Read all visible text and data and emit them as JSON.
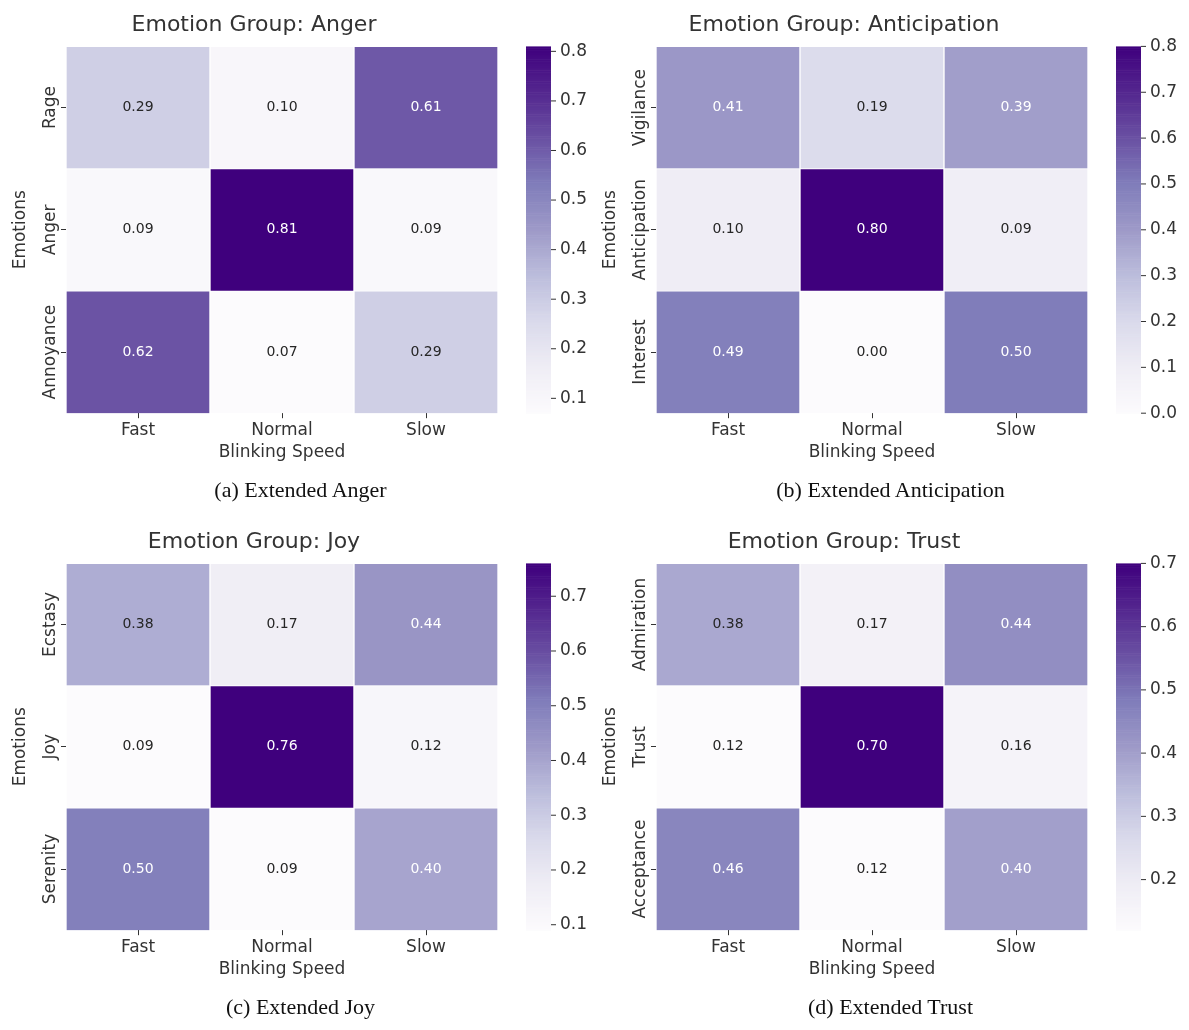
{
  "chart_data": [
    {
      "type": "heatmap",
      "title": "Emotion Group: Anger",
      "xlabel": "Blinking Speed",
      "ylabel": "Emotions",
      "categories": [
        "Fast",
        "Normal",
        "Slow"
      ],
      "y_categories": [
        "Rage",
        "Anger",
        "Annoyance"
      ],
      "cells": [
        [
          0.29,
          0.1,
          0.61
        ],
        [
          0.09,
          0.81,
          0.09
        ],
        [
          0.62,
          0.07,
          0.29
        ]
      ],
      "cell_labels": [
        [
          "0.29",
          "0.10",
          "0.61"
        ],
        [
          "0.09",
          "0.81",
          "0.09"
        ],
        [
          "0.62",
          "0.07",
          "0.29"
        ]
      ],
      "clim": [
        0.07,
        0.81
      ],
      "cticks": [
        0.1,
        0.2,
        0.3,
        0.4,
        0.5,
        0.6,
        0.7,
        0.8
      ],
      "annotations": [
        "(a) Extended Anger"
      ]
    },
    {
      "type": "heatmap",
      "title": "Emotion Group: Anticipation",
      "xlabel": "Blinking Speed",
      "ylabel": "Emotions",
      "categories": [
        "Fast",
        "Normal",
        "Slow"
      ],
      "y_categories": [
        "Vigilance",
        "Anticipation",
        "Interest"
      ],
      "cells": [
        [
          0.41,
          0.19,
          0.39
        ],
        [
          0.1,
          0.8,
          0.09
        ],
        [
          0.49,
          0.0,
          0.5
        ]
      ],
      "cell_labels": [
        [
          "0.41",
          "0.19",
          "0.39"
        ],
        [
          "0.10",
          "0.80",
          "0.09"
        ],
        [
          "0.49",
          "0.00",
          "0.50"
        ]
      ],
      "clim": [
        0.0,
        0.8
      ],
      "cticks": [
        {
          "value": 0,
          "label": "0.0"
        },
        0.1,
        0.2,
        0.3,
        0.4,
        0.5,
        0.6,
        0.7,
        0.8
      ],
      "annotations": [
        "(b) Extended Anticipation"
      ]
    },
    {
      "type": "heatmap",
      "title": "Emotion Group: Joy",
      "xlabel": "Blinking Speed",
      "ylabel": "Emotions",
      "categories": [
        "Fast",
        "Normal",
        "Slow"
      ],
      "y_categories": [
        "Ecstasy",
        "Joy",
        "Serenity"
      ],
      "cells": [
        [
          0.38,
          0.17,
          0.44
        ],
        [
          0.09,
          0.76,
          0.12
        ],
        [
          0.5,
          0.09,
          0.4
        ]
      ],
      "cell_labels": [
        [
          "0.38",
          "0.17",
          "0.44"
        ],
        [
          "0.09",
          "0.76",
          "0.12"
        ],
        [
          "0.50",
          "0.09",
          "0.40"
        ]
      ],
      "clim": [
        0.09,
        0.76
      ],
      "cticks": [
        0.1,
        0.2,
        0.3,
        0.4,
        0.5,
        0.6,
        0.7
      ],
      "annotations": [
        "(c) Extended Joy"
      ]
    },
    {
      "type": "heatmap",
      "title": "Emotion Group: Trust",
      "xlabel": "Blinking Speed",
      "ylabel": "Emotions",
      "categories": [
        "Fast",
        "Normal",
        "Slow"
      ],
      "y_categories": [
        "Admiration",
        "Trust",
        "Acceptance"
      ],
      "cells": [
        [
          0.38,
          0.17,
          0.44
        ],
        [
          0.12,
          0.7,
          0.16
        ],
        [
          0.46,
          0.12,
          0.4
        ]
      ],
      "cell_labels": [
        [
          "0.38",
          "0.17",
          "0.44"
        ],
        [
          "0.12",
          "0.70",
          "0.16"
        ],
        [
          "0.46",
          "0.12",
          "0.40"
        ]
      ],
      "clim": [
        0.12,
        0.7
      ],
      "cticks": [
        0.2,
        0.3,
        0.4,
        0.5,
        0.6,
        0.7
      ],
      "annotations": [
        "(d) Extended Trust"
      ]
    }
  ]
}
